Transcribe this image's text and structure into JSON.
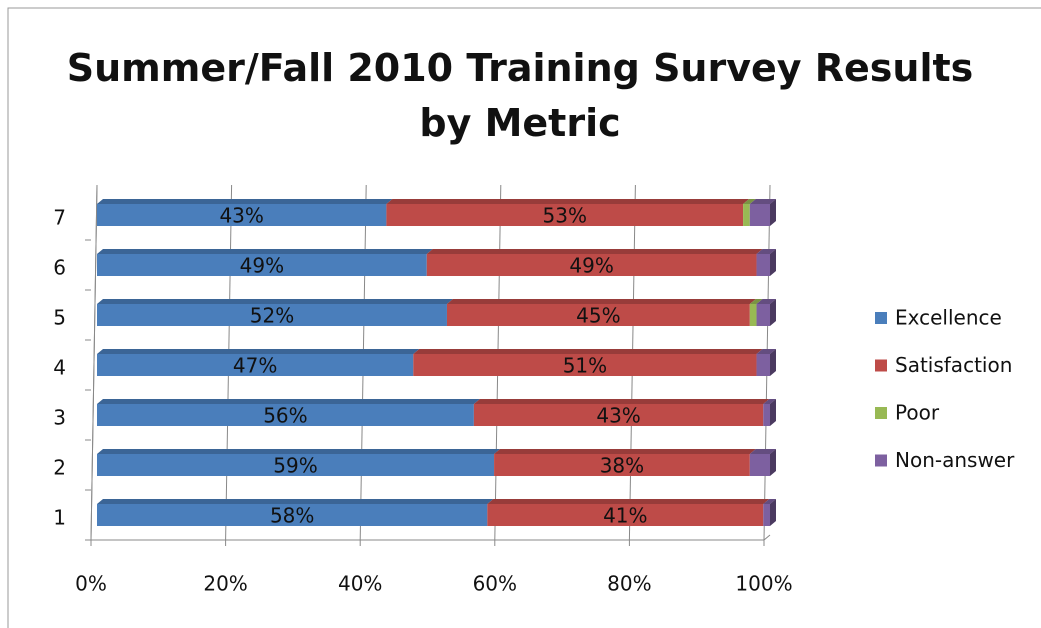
{
  "chart_data": {
    "type": "stacked-barh",
    "title": "Summer/Fall 2010 Training Survey Results by Metric",
    "categories": [
      "1",
      "2",
      "3",
      "4",
      "5",
      "6",
      "7"
    ],
    "series": [
      {
        "name": "Excellence",
        "color": "#4a7ebb",
        "values": [
          58,
          59,
          56,
          47,
          52,
          49,
          43
        ],
        "value_labels": [
          "58%",
          "59%",
          "56%",
          "47%",
          "52%",
          "49%",
          "43%"
        ]
      },
      {
        "name": "Satisfaction",
        "color": "#be4b48",
        "values": [
          41,
          38,
          43,
          51,
          45,
          49,
          53
        ],
        "value_labels": [
          "41%",
          "38%",
          "43%",
          "51%",
          "45%",
          "49%",
          "53%"
        ]
      },
      {
        "name": "Poor",
        "color": "#98b954",
        "values": [
          0,
          0,
          0,
          0,
          1,
          0,
          1
        ]
      },
      {
        "name": "Non-answer",
        "color": "#7d60a0",
        "values": [
          1,
          3,
          1,
          2,
          2,
          2,
          3
        ]
      }
    ],
    "xlim": [
      0,
      100
    ],
    "xticks": [
      {
        "value": 0,
        "label": "0%"
      },
      {
        "value": 20,
        "label": "20%"
      },
      {
        "value": 40,
        "label": "40%"
      },
      {
        "value": 60,
        "label": "60%"
      },
      {
        "value": 80,
        "label": "80%"
      },
      {
        "value": 100,
        "label": "100%"
      }
    ],
    "grid": true,
    "legend": "right"
  }
}
